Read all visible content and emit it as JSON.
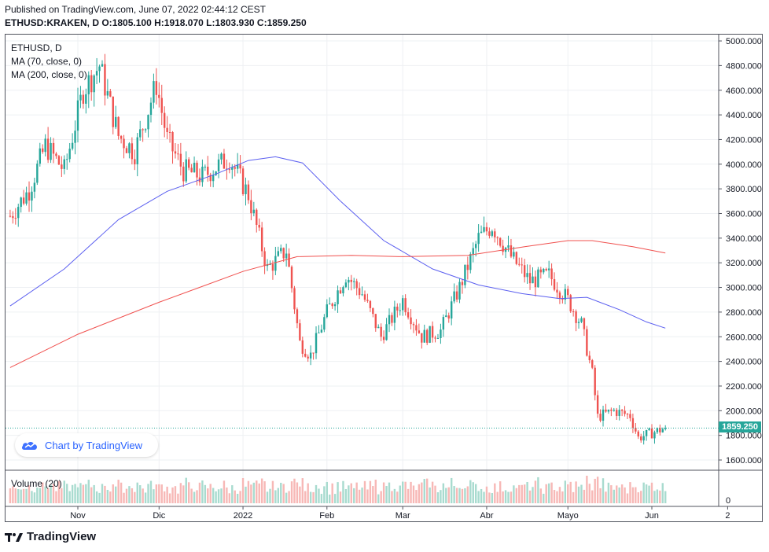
{
  "header": {
    "published": "Published on TradingView.com, June 07, 2022 02:44:12 CEST",
    "symbol": "ETHUSD:KRAKEN, D",
    "o_label": "O:",
    "o_value": "1805.100",
    "h_label": "H:",
    "h_value": "1918.070",
    "l_label": "L:",
    "l_value": "1803.930",
    "c_label": "C:",
    "c_value": "1859.250"
  },
  "legend": {
    "symbol": "ETHUSD, D",
    "ma70": "MA (70, close, 0)",
    "ma200": "MA (200, close, 0)",
    "volume": "Volume (20)"
  },
  "price_badge": "1859.250",
  "chart_by": "Chart by TradingView",
  "brand": "TradingView",
  "colors": {
    "up": "#26a69a",
    "down": "#ef5350",
    "ma70": "#5b5ff0",
    "ma200": "#f0504e",
    "vol_up": "#a8dbcf",
    "vol_down": "#f7b8b6",
    "price_line": "#26a69a"
  },
  "chart_data": {
    "type": "candlestick",
    "title": "ETHUSD, D",
    "ylim": [
      1500,
      5100
    ],
    "y_ticks": [
      "5000.000",
      "4800.000",
      "4600.000",
      "4400.000",
      "4200.000",
      "4000.000",
      "3800.000",
      "3600.000",
      "3400.000",
      "3200.000",
      "3000.000",
      "2800.000",
      "2600.000",
      "2400.000",
      "2200.000",
      "2000.000",
      "1800.000",
      "1600.000"
    ],
    "y_tick_values": [
      5000,
      4800,
      4600,
      4400,
      4200,
      4000,
      3800,
      3600,
      3400,
      3200,
      3000,
      2800,
      2600,
      2400,
      2200,
      2000,
      1800,
      1600
    ],
    "x_ticks": [
      {
        "label": "Nov",
        "date": "2021-11-01"
      },
      {
        "label": "Dic",
        "date": "2021-12-01"
      },
      {
        "label": "2022",
        "date": "2022-01-01"
      },
      {
        "label": "Feb",
        "date": "2022-02-01"
      },
      {
        "label": "Mar",
        "date": "2022-03-01"
      },
      {
        "label": "Abr",
        "date": "2022-04-01"
      },
      {
        "label": "Mayo",
        "date": "2022-05-01"
      },
      {
        "label": "Jun",
        "date": "2022-06-01"
      },
      {
        "label": "2",
        "date": "2022-06-29"
      }
    ],
    "volume_axis_label": "0",
    "last_close": 1859.25,
    "closes": [
      {
        "date": "2021-10-07",
        "close": 3580
      },
      {
        "date": "2021-10-14",
        "close": 3790
      },
      {
        "date": "2021-10-20",
        "close": 4150
      },
      {
        "date": "2021-10-27",
        "close": 3950
      },
      {
        "date": "2021-11-03",
        "close": 4600
      },
      {
        "date": "2021-11-09",
        "close": 4800
      },
      {
        "date": "2021-11-16",
        "close": 4230
      },
      {
        "date": "2021-11-22",
        "close": 4100
      },
      {
        "date": "2021-11-30",
        "close": 4650
      },
      {
        "date": "2021-12-04",
        "close": 4200
      },
      {
        "date": "2021-12-10",
        "close": 3950
      },
      {
        "date": "2021-12-17",
        "close": 3900
      },
      {
        "date": "2021-12-27",
        "close": 4050
      },
      {
        "date": "2022-01-03",
        "close": 3750
      },
      {
        "date": "2022-01-10",
        "close": 3150
      },
      {
        "date": "2022-01-17",
        "close": 3300
      },
      {
        "date": "2022-01-22",
        "close": 2550
      },
      {
        "date": "2022-01-26",
        "close": 2450
      },
      {
        "date": "2022-02-01",
        "close": 2800
      },
      {
        "date": "2022-02-08",
        "close": 3100
      },
      {
        "date": "2022-02-14",
        "close": 2950
      },
      {
        "date": "2022-02-21",
        "close": 2600
      },
      {
        "date": "2022-03-01",
        "close": 2900
      },
      {
        "date": "2022-03-08",
        "close": 2600
      },
      {
        "date": "2022-03-15",
        "close": 2650
      },
      {
        "date": "2022-03-22",
        "close": 3000
      },
      {
        "date": "2022-03-29",
        "close": 3400
      },
      {
        "date": "2022-04-03",
        "close": 3500
      },
      {
        "date": "2022-04-10",
        "close": 3250
      },
      {
        "date": "2022-04-17",
        "close": 3050
      },
      {
        "date": "2022-04-24",
        "close": 3100
      },
      {
        "date": "2022-05-01",
        "close": 2900
      },
      {
        "date": "2022-05-06",
        "close": 2700
      },
      {
        "date": "2022-05-10",
        "close": 2300
      },
      {
        "date": "2022-05-12",
        "close": 1950
      },
      {
        "date": "2022-05-18",
        "close": 2000
      },
      {
        "date": "2022-05-24",
        "close": 1960
      },
      {
        "date": "2022-05-27",
        "close": 1780
      },
      {
        "date": "2022-06-01",
        "close": 1820
      },
      {
        "date": "2022-06-06",
        "close": 1859.25
      }
    ],
    "series": [
      {
        "name": "MA (70, close, 0)",
        "type": "line",
        "points": [
          {
            "date": "2021-10-07",
            "value": 2850
          },
          {
            "date": "2021-10-27",
            "value": 3150
          },
          {
            "date": "2021-11-16",
            "value": 3550
          },
          {
            "date": "2021-12-04",
            "value": 3780
          },
          {
            "date": "2021-12-22",
            "value": 3920
          },
          {
            "date": "2022-01-03",
            "value": 4030
          },
          {
            "date": "2022-01-13",
            "value": 4060
          },
          {
            "date": "2022-01-23",
            "value": 4010
          },
          {
            "date": "2022-02-06",
            "value": 3700
          },
          {
            "date": "2022-02-22",
            "value": 3380
          },
          {
            "date": "2022-03-12",
            "value": 3150
          },
          {
            "date": "2022-03-29",
            "value": 3020
          },
          {
            "date": "2022-04-14",
            "value": 2950
          },
          {
            "date": "2022-04-28",
            "value": 2910
          },
          {
            "date": "2022-05-08",
            "value": 2920
          },
          {
            "date": "2022-05-20",
            "value": 2820
          },
          {
            "date": "2022-05-30",
            "value": 2720
          },
          {
            "date": "2022-06-06",
            "value": 2670
          }
        ]
      },
      {
        "name": "MA (200, close, 0)",
        "type": "line",
        "points": [
          {
            "date": "2021-10-07",
            "value": 2350
          },
          {
            "date": "2021-11-01",
            "value": 2620
          },
          {
            "date": "2021-12-01",
            "value": 2880
          },
          {
            "date": "2022-01-01",
            "value": 3130
          },
          {
            "date": "2022-01-21",
            "value": 3250
          },
          {
            "date": "2022-02-10",
            "value": 3260
          },
          {
            "date": "2022-03-01",
            "value": 3250
          },
          {
            "date": "2022-03-25",
            "value": 3260
          },
          {
            "date": "2022-04-15",
            "value": 3330
          },
          {
            "date": "2022-05-01",
            "value": 3380
          },
          {
            "date": "2022-05-10",
            "value": 3380
          },
          {
            "date": "2022-05-25",
            "value": 3330
          },
          {
            "date": "2022-06-06",
            "value": 3280
          }
        ]
      }
    ]
  }
}
